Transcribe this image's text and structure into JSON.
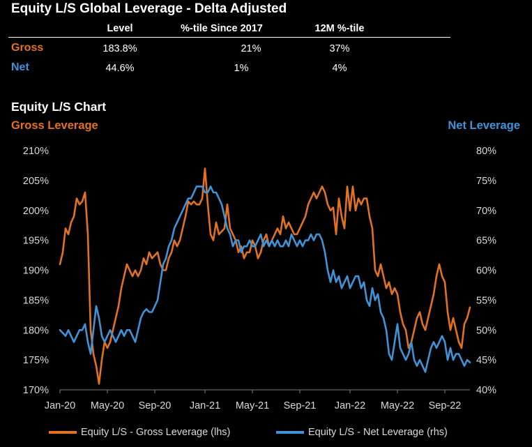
{
  "title": "Equity L/S Global Leverage - Delta Adjusted",
  "summary_table": {
    "headers": [
      "Level",
      "%-tile Since 2017",
      "12M %-tile"
    ],
    "rows": [
      {
        "label": "Gross",
        "level": "183.8%",
        "pct_since_2017": "21%",
        "pct_12m": "37%"
      },
      {
        "label": "Net",
        "level": "44.6%",
        "pct_since_2017": "1%",
        "pct_12m": "4%"
      }
    ]
  },
  "colors": {
    "gross": "#e27122",
    "net": "#3f93d6",
    "background": "#000000",
    "text": "#ffffff"
  },
  "chart_data": {
    "type": "line",
    "title": "Equity L/S Chart",
    "left_axis_title": "Gross Leverage",
    "right_axis_title": "Net Leverage",
    "x_ticks": [
      "Jan-20",
      "May-20",
      "Sep-20",
      "Jan-21",
      "May-21",
      "Sep-21",
      "Jan-22",
      "May-22",
      "Sep-22"
    ],
    "x_tick_positions": [
      0,
      17,
      34,
      52,
      69,
      86,
      104,
      121,
      138
    ],
    "x_range": [
      0,
      147
    ],
    "y_left": {
      "range": [
        170,
        210
      ],
      "ticks": [
        "170%",
        "175%",
        "180%",
        "185%",
        "190%",
        "195%",
        "200%",
        "205%",
        "210%"
      ],
      "tick_values": [
        170,
        175,
        180,
        185,
        190,
        195,
        200,
        205,
        210
      ]
    },
    "y_right": {
      "range": [
        40,
        80
      ],
      "ticks": [
        "40%",
        "45%",
        "50%",
        "55%",
        "60%",
        "65%",
        "70%",
        "75%",
        "80%"
      ],
      "tick_values": [
        40,
        45,
        50,
        55,
        60,
        65,
        70,
        75,
        80
      ]
    },
    "legend": [
      "Equity L/S - Gross Leverage (lhs)",
      "Equity L/S - Net Leverage (rhs)"
    ],
    "series": [
      {
        "name": "Equity L/S - Gross Leverage (lhs)",
        "axis": "left",
        "points": [
          [
            0,
            191
          ],
          [
            1,
            193
          ],
          [
            2,
            197
          ],
          [
            3,
            196
          ],
          [
            4,
            198
          ],
          [
            5,
            199
          ],
          [
            6,
            202
          ],
          [
            7,
            201
          ],
          [
            8,
            201.5
          ],
          [
            9,
            203
          ],
          [
            10,
            196
          ],
          [
            11,
            180
          ],
          [
            12,
            176
          ],
          [
            13,
            174
          ],
          [
            14,
            171
          ],
          [
            15,
            175
          ],
          [
            16,
            178
          ],
          [
            17,
            177
          ],
          [
            18,
            178
          ],
          [
            19,
            180
          ],
          [
            20,
            182
          ],
          [
            21,
            184
          ],
          [
            22,
            187
          ],
          [
            23,
            189
          ],
          [
            24,
            191
          ],
          [
            25,
            190
          ],
          [
            26,
            189
          ],
          [
            27,
            190
          ],
          [
            28,
            189
          ],
          [
            29,
            190
          ],
          [
            30,
            192
          ],
          [
            31,
            191
          ],
          [
            32,
            193
          ],
          [
            33,
            192
          ],
          [
            34,
            192.5
          ],
          [
            35,
            193
          ],
          [
            36,
            191
          ],
          [
            37,
            190
          ],
          [
            38,
            190
          ],
          [
            39,
            192
          ],
          [
            40,
            193
          ],
          [
            41,
            195
          ],
          [
            42,
            194
          ],
          [
            43,
            195
          ],
          [
            44,
            197
          ],
          [
            45,
            199
          ],
          [
            46,
            201.5
          ],
          [
            47,
            201
          ],
          [
            48,
            201.5
          ],
          [
            49,
            201
          ],
          [
            50,
            201
          ],
          [
            51,
            202
          ],
          [
            52,
            207
          ],
          [
            53,
            201
          ],
          [
            54,
            196
          ],
          [
            55,
            195
          ],
          [
            56,
            198
          ],
          [
            57,
            196
          ],
          [
            58,
            196.5
          ],
          [
            59,
            197
          ],
          [
            60,
            201
          ],
          [
            61,
            197
          ],
          [
            62,
            196
          ],
          [
            63,
            195
          ],
          [
            64,
            193
          ],
          [
            65,
            194
          ],
          [
            66,
            192
          ],
          [
            67,
            193
          ],
          [
            68,
            193
          ],
          [
            69,
            195
          ],
          [
            70,
            194
          ],
          [
            71,
            192
          ],
          [
            72,
            193
          ],
          [
            73,
            195
          ],
          [
            74,
            196
          ],
          [
            75,
            194
          ],
          [
            76,
            195
          ],
          [
            77,
            196
          ],
          [
            78,
            197
          ],
          [
            79,
            196
          ],
          [
            80,
            199
          ],
          [
            81,
            197
          ],
          [
            82,
            198
          ],
          [
            83,
            197
          ],
          [
            84,
            196
          ],
          [
            85,
            196
          ],
          [
            86,
            197
          ],
          [
            87,
            198
          ],
          [
            88,
            199
          ],
          [
            89,
            201
          ],
          [
            90,
            202
          ],
          [
            91,
            203
          ],
          [
            92,
            202
          ],
          [
            93,
            203
          ],
          [
            94,
            204
          ],
          [
            95,
            203
          ],
          [
            96,
            201
          ],
          [
            97,
            200
          ],
          [
            98,
            200.5
          ],
          [
            99,
            196
          ],
          [
            100,
            202
          ],
          [
            101,
            199
          ],
          [
            102,
            197
          ],
          [
            103,
            204
          ],
          [
            104,
            200
          ],
          [
            105,
            204
          ],
          [
            106,
            200
          ],
          [
            107,
            202
          ],
          [
            108,
            201
          ],
          [
            109,
            202
          ],
          [
            110,
            202
          ],
          [
            111,
            199
          ],
          [
            112,
            197
          ],
          [
            113,
            190
          ],
          [
            114,
            189
          ],
          [
            115,
            191
          ],
          [
            116,
            189
          ],
          [
            117,
            187
          ],
          [
            118,
            188
          ],
          [
            119,
            186
          ],
          [
            120,
            187
          ],
          [
            121,
            186
          ],
          [
            122,
            183
          ],
          [
            123,
            181
          ],
          [
            124,
            180
          ],
          [
            125,
            177
          ],
          [
            126,
            178
          ],
          [
            127,
            180
          ],
          [
            128,
            182
          ],
          [
            129,
            183
          ],
          [
            130,
            181
          ],
          [
            131,
            180
          ],
          [
            132,
            182
          ],
          [
            133,
            184
          ],
          [
            134,
            186
          ],
          [
            135,
            189
          ],
          [
            136,
            191
          ],
          [
            137,
            189
          ],
          [
            138,
            188
          ],
          [
            139,
            183
          ],
          [
            140,
            180
          ],
          [
            141,
            182
          ],
          [
            142,
            180
          ],
          [
            143,
            178
          ],
          [
            144,
            177
          ],
          [
            145,
            181
          ],
          [
            146,
            182
          ],
          [
            147,
            183.8
          ]
        ]
      },
      {
        "name": "Equity L/S - Net Leverage (rhs)",
        "axis": "right",
        "points": [
          [
            0,
            50
          ],
          [
            1,
            49.5
          ],
          [
            2,
            49
          ],
          [
            3,
            50
          ],
          [
            4,
            49
          ],
          [
            5,
            48
          ],
          [
            6,
            49
          ],
          [
            7,
            50
          ],
          [
            8,
            50
          ],
          [
            9,
            51
          ],
          [
            10,
            48
          ],
          [
            11,
            46
          ],
          [
            12,
            50
          ],
          [
            13,
            54
          ],
          [
            14,
            52
          ],
          [
            15,
            49
          ],
          [
            16,
            48
          ],
          [
            17,
            49
          ],
          [
            18,
            50
          ],
          [
            19,
            49
          ],
          [
            20,
            48
          ],
          [
            21,
            49
          ],
          [
            22,
            50
          ],
          [
            23,
            49
          ],
          [
            24,
            50
          ],
          [
            25,
            50
          ],
          [
            26,
            49
          ],
          [
            27,
            48
          ],
          [
            28,
            50
          ],
          [
            29,
            52
          ],
          [
            30,
            53
          ],
          [
            31,
            53.5
          ],
          [
            32,
            53
          ],
          [
            33,
            53
          ],
          [
            34,
            54
          ],
          [
            35,
            55
          ],
          [
            36,
            58
          ],
          [
            37,
            61
          ],
          [
            38,
            62
          ],
          [
            39,
            64
          ],
          [
            40,
            65
          ],
          [
            41,
            67
          ],
          [
            42,
            68
          ],
          [
            43,
            69
          ],
          [
            44,
            70
          ],
          [
            45,
            71
          ],
          [
            46,
            72
          ],
          [
            47,
            72
          ],
          [
            48,
            73
          ],
          [
            49,
            74
          ],
          [
            50,
            74
          ],
          [
            51,
            74
          ],
          [
            52,
            73
          ],
          [
            53,
            73
          ],
          [
            54,
            74
          ],
          [
            55,
            73
          ],
          [
            56,
            73
          ],
          [
            57,
            72
          ],
          [
            58,
            71
          ],
          [
            59,
            69
          ],
          [
            60,
            67
          ],
          [
            61,
            66
          ],
          [
            62,
            64
          ],
          [
            63,
            65
          ],
          [
            64,
            65
          ],
          [
            65,
            63
          ],
          [
            66,
            64
          ],
          [
            67,
            64
          ],
          [
            68,
            65
          ],
          [
            69,
            64
          ],
          [
            70,
            64
          ],
          [
            71,
            65
          ],
          [
            72,
            66
          ],
          [
            73,
            64
          ],
          [
            74,
            65
          ],
          [
            75,
            64
          ],
          [
            76,
            65
          ],
          [
            77,
            64
          ],
          [
            78,
            65
          ],
          [
            79,
            64
          ],
          [
            80,
            64
          ],
          [
            81,
            65
          ],
          [
            82,
            64
          ],
          [
            83,
            66
          ],
          [
            84,
            65
          ],
          [
            85,
            64
          ],
          [
            86,
            65
          ],
          [
            87,
            64
          ],
          [
            88,
            65
          ],
          [
            89,
            65
          ],
          [
            90,
            66
          ],
          [
            91,
            65
          ],
          [
            92,
            66
          ],
          [
            93,
            66
          ],
          [
            94,
            65
          ],
          [
            95,
            63
          ],
          [
            96,
            60
          ],
          [
            97,
            58
          ],
          [
            98,
            60
          ],
          [
            99,
            58
          ],
          [
            100,
            59
          ],
          [
            101,
            57
          ],
          [
            102,
            58
          ],
          [
            103,
            59
          ],
          [
            104,
            57
          ],
          [
            105,
            58
          ],
          [
            106,
            59
          ],
          [
            107,
            59
          ],
          [
            108,
            57
          ],
          [
            109,
            58
          ],
          [
            110,
            55
          ],
          [
            111,
            54
          ],
          [
            112,
            57
          ],
          [
            113,
            55
          ],
          [
            114,
            56
          ],
          [
            115,
            53
          ],
          [
            116,
            52
          ],
          [
            117,
            50
          ],
          [
            118,
            46
          ],
          [
            119,
            45
          ],
          [
            120,
            48
          ],
          [
            121,
            51
          ],
          [
            122,
            47
          ],
          [
            123,
            46
          ],
          [
            124,
            45
          ],
          [
            125,
            46
          ],
          [
            126,
            48
          ],
          [
            127,
            45
          ],
          [
            128,
            44
          ],
          [
            129,
            45
          ],
          [
            130,
            44
          ],
          [
            131,
            43
          ],
          [
            132,
            45
          ],
          [
            133,
            47
          ],
          [
            134,
            48
          ],
          [
            135,
            47
          ],
          [
            136,
            48
          ],
          [
            137,
            49
          ],
          [
            138,
            48
          ],
          [
            139,
            45
          ],
          [
            140,
            47
          ],
          [
            141,
            45
          ],
          [
            142,
            46
          ],
          [
            143,
            46
          ],
          [
            144,
            45
          ],
          [
            145,
            44
          ],
          [
            146,
            45
          ],
          [
            147,
            44.6
          ]
        ]
      }
    ]
  }
}
